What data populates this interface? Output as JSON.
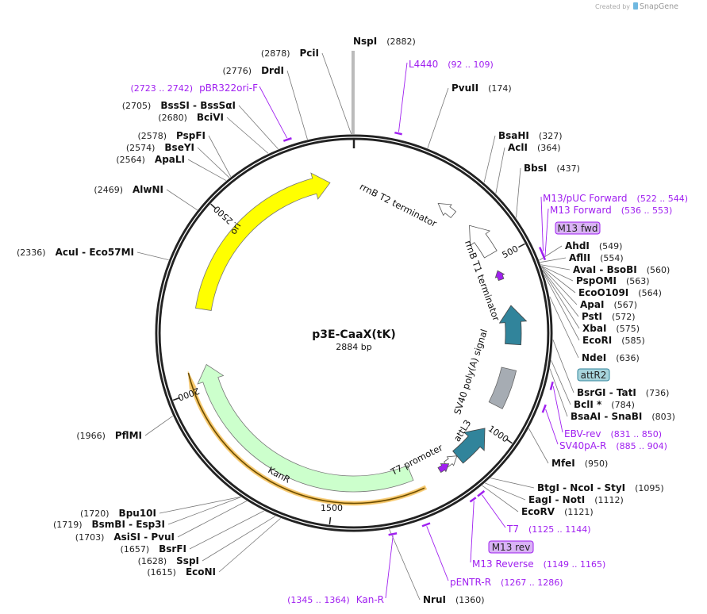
{
  "watermark": {
    "prefix": "Created by",
    "brand": "SnapGene"
  },
  "plasmid": {
    "name": "p3E-CaaX(tK)",
    "length": "2884 bp",
    "total_bp": 2884
  },
  "ticks": [
    "500",
    "1000",
    "1500",
    "2000",
    "2500"
  ],
  "enzymes": [
    {
      "name": "NspI",
      "pos": 2882
    },
    {
      "name": "PvuII",
      "pos": 174
    },
    {
      "name": "BsaHI",
      "pos": 327
    },
    {
      "name": "AclI",
      "pos": 364
    },
    {
      "name": "BbsI",
      "pos": 437
    },
    {
      "name": "AhdI",
      "pos": 549
    },
    {
      "name": "AflII",
      "pos": 554
    },
    {
      "name": "AvaI  - BsoBI",
      "pos": 560
    },
    {
      "name": "PspOMI",
      "pos": 563
    },
    {
      "name": "EcoO109I",
      "pos": 564
    },
    {
      "name": "ApaI",
      "pos": 567
    },
    {
      "name": "PstI",
      "pos": 572
    },
    {
      "name": "XbaI",
      "pos": 575
    },
    {
      "name": "EcoRI",
      "pos": 585
    },
    {
      "name": "NdeI",
      "pos": 636
    },
    {
      "name": "BsrGI  - TatI",
      "pos": 736
    },
    {
      "name": "BclI *",
      "pos": 784
    },
    {
      "name": "BsaAI  - SnaBI",
      "pos": 803
    },
    {
      "name": "MfeI",
      "pos": 950
    },
    {
      "name": "BtgI  - NcoI  - StyI",
      "pos": 1095
    },
    {
      "name": "EagI  - NotI",
      "pos": 1112
    },
    {
      "name": "EcoRV",
      "pos": 1121
    },
    {
      "name": "NruI",
      "pos": 1360
    },
    {
      "name": "EcoNI",
      "pos": 1615
    },
    {
      "name": "SspI",
      "pos": 1628
    },
    {
      "name": "BsrFI",
      "pos": 1657
    },
    {
      "name": "AsiSI  - PvuI",
      "pos": 1703
    },
    {
      "name": "BsmBI  - Esp3I",
      "pos": 1719
    },
    {
      "name": "Bpu10I",
      "pos": 1720
    },
    {
      "name": "PflMI",
      "pos": 1966
    },
    {
      "name": "AcuI  - Eco57MI",
      "pos": 2336
    },
    {
      "name": "AlwNI",
      "pos": 2469
    },
    {
      "name": "ApaLI",
      "pos": 2564
    },
    {
      "name": "BseYI",
      "pos": 2574
    },
    {
      "name": "PspFI",
      "pos": 2578
    },
    {
      "name": "BciVI",
      "pos": 2680
    },
    {
      "name": "BssSI  - BssSαI",
      "pos": 2705
    },
    {
      "name": "DrdI",
      "pos": 2776
    },
    {
      "name": "PciI",
      "pos": 2878
    }
  ],
  "primers": [
    {
      "name": "L4440",
      "range": "(92 .. 109)",
      "start": 92,
      "end": 109
    },
    {
      "name": "M13/pUC Forward",
      "range": "(522 .. 544)",
      "start": 522,
      "end": 544
    },
    {
      "name": "M13 Forward",
      "range": "(536 .. 553)",
      "start": 536,
      "end": 553
    },
    {
      "name": "EBV-rev",
      "range": "(831 .. 850)",
      "start": 831,
      "end": 850
    },
    {
      "name": "SV40pA-R",
      "range": "(885 .. 904)",
      "start": 885,
      "end": 904
    },
    {
      "name": "T7",
      "range": "(1125 .. 1144)",
      "start": 1125,
      "end": 1144
    },
    {
      "name": "M13 Reverse",
      "range": "(1149 .. 1165)",
      "start": 1149,
      "end": 1165
    },
    {
      "name": "pENTR-R",
      "range": "(1267 .. 1286)",
      "start": 1267,
      "end": 1286
    },
    {
      "name": "Kan-R",
      "range": "(1345 .. 1364)",
      "start": 1345,
      "end": 1364
    },
    {
      "name": "pBR322ori-F",
      "range": "(2723 .. 2742)",
      "start": 2723,
      "end": 2742
    }
  ],
  "boxed_labels": [
    {
      "text": "M13 fwd",
      "color": "#d9b3f5"
    },
    {
      "text": "attR2",
      "color": "#a8d4dc"
    },
    {
      "text": "M13 rev",
      "color": "#d9b3f5"
    }
  ],
  "features": [
    {
      "name": "ori",
      "color": "#ffff00"
    },
    {
      "name": "KanR",
      "color": "#ccffcc"
    },
    {
      "name": "rrnB T2 terminator",
      "color": "#ffffff"
    },
    {
      "name": "rrnB T1 terminator",
      "color": "#ffffff"
    },
    {
      "name": "SV40 poly(A) signal",
      "color": "#a6acb3"
    },
    {
      "name": "attL3",
      "color": "#31849b"
    },
    {
      "name": "T7 promoter",
      "color": "#ffffff"
    }
  ],
  "colors": {
    "primer": "#a020f0",
    "teal": "#31849b",
    "kan_promoter": "#f5b942"
  }
}
